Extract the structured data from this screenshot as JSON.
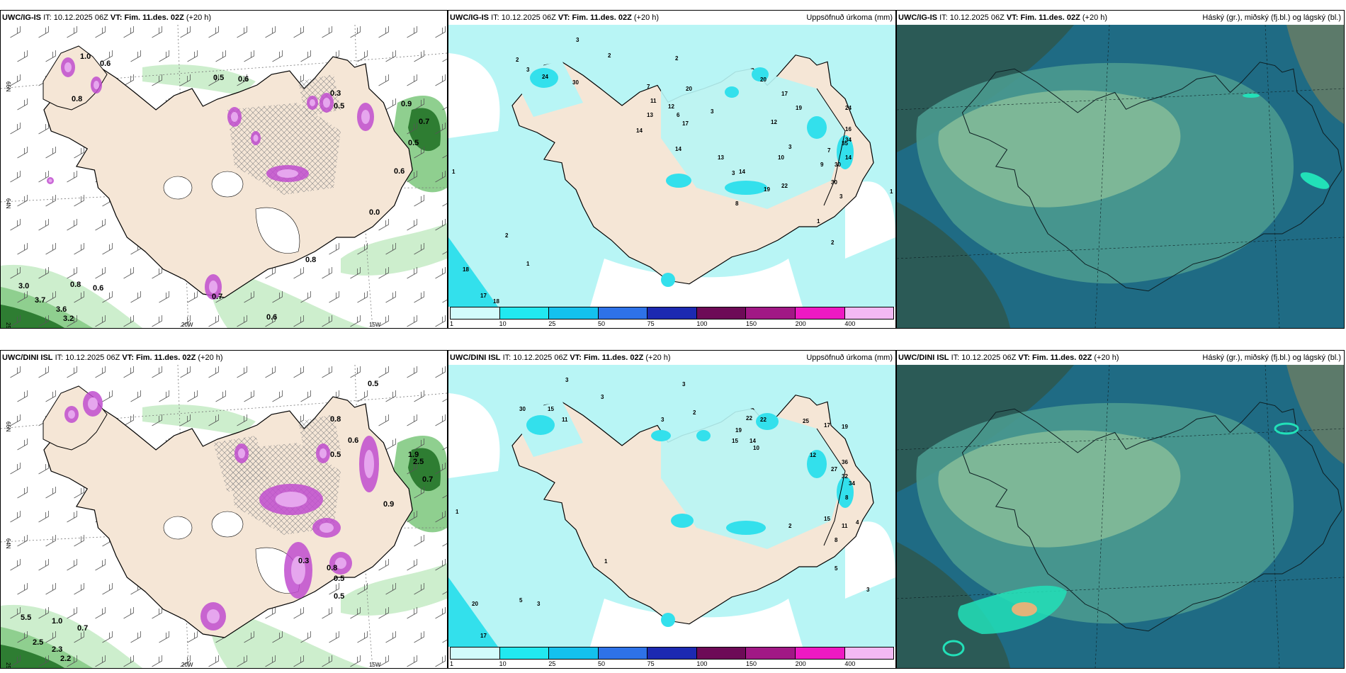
{
  "panels": [
    {
      "model": "UWC/IG-IS",
      "it_label": "IT:",
      "it": "10.12.2025 06Z",
      "vt_label": "VT:",
      "vt": "Fim. 11.des. 02Z",
      "lead": "(+20 h)",
      "right_title": "",
      "lon_labels": [
        "20W",
        "15W"
      ],
      "lat_labels": [
        "66N",
        "64N",
        "25W"
      ],
      "values": [
        "1.0",
        "0.6",
        "0.8",
        "0.5",
        "0.6",
        "0.3",
        "0.5",
        "0.9",
        "0.7",
        "0.5",
        "0.6",
        "0.0",
        "0.8",
        "3.0",
        "0.8",
        "0.6",
        "3.7",
        "3.6",
        "3.2",
        "0.6",
        "0.7"
      ]
    },
    {
      "model": "UWC/IG-IS",
      "it_label": "IT:",
      "it": "10.12.2025 06Z",
      "vt_label": "VT:",
      "vt": "Fim. 11.des. 02Z",
      "lead": "(+20 h)",
      "right_title": "Uppsöfnuð úrkoma (mm)",
      "lon_labels": [
        "66N",
        "64N"
      ],
      "values": [
        "3",
        "2",
        "2",
        "2",
        "3",
        "24",
        "30",
        "7",
        "20",
        "11",
        "12",
        "13",
        "14",
        "17",
        "6",
        "3",
        "14",
        "20",
        "17",
        "24",
        "19",
        "12",
        "16",
        "34",
        "35",
        "30",
        "30",
        "3",
        "1",
        "1",
        "2",
        "18",
        "17",
        "18",
        "1",
        "19",
        "14",
        "22",
        "8",
        "3",
        "13",
        "10",
        "7",
        "9",
        "14",
        "3",
        "1",
        "2"
      ],
      "legend": [
        "1",
        "10",
        "25",
        "50",
        "75",
        "100",
        "150",
        "200",
        "400"
      ]
    },
    {
      "model": "UWC/IG-IS",
      "it_label": "IT:",
      "it": "10.12.2025 06Z",
      "vt_label": "VT:",
      "vt": "Fim. 11.des. 02Z",
      "lead": "(+20 h)",
      "right_title": "Háský (gr.), miðský (fj.bl.) og lágský (bl.)"
    },
    {
      "model": "UWC/DINI ISL",
      "it_label": "IT:",
      "it": "10.12.2025 06Z",
      "vt_label": "VT:",
      "vt": "Fim. 11.des. 02Z",
      "lead": "(+20 h)",
      "right_title": "",
      "lon_labels": [
        "20W",
        "15W"
      ],
      "lat_labels": [
        "66N",
        "64N",
        "25W"
      ],
      "values": [
        "0.5",
        "1.9",
        "0.8",
        "0.6",
        "0.5",
        "2.5",
        "0.7",
        "0.3",
        "0.8",
        "0.5",
        "5.5",
        "1.0",
        "0.7",
        "2.5",
        "2.3",
        "2.2",
        "0.9",
        "0.5"
      ]
    },
    {
      "model": "UWC/DINI ISL",
      "it_label": "IT:",
      "it": "10.12.2025 06Z",
      "vt_label": "VT:",
      "vt": "Fim. 11.des. 02Z",
      "lead": "(+20 h)",
      "right_title": "Uppsöfnuð úrkoma (mm)",
      "lon_labels": [
        "66N",
        "64N"
      ],
      "values": [
        "3",
        "3",
        "3",
        "2",
        "3",
        "30",
        "15",
        "11",
        "22",
        "22",
        "19",
        "15",
        "14",
        "10",
        "25",
        "17",
        "19",
        "12",
        "36",
        "27",
        "32",
        "34",
        "1",
        "20",
        "17",
        "5",
        "3",
        "1",
        "8",
        "4",
        "15",
        "11",
        "8",
        "5",
        "2",
        "3"
      ],
      "legend": [
        "1",
        "10",
        "25",
        "50",
        "75",
        "100",
        "150",
        "200",
        "400"
      ]
    },
    {
      "model": "UWC/DINI ISL",
      "it_label": "IT:",
      "it": "10.12.2025 06Z",
      "vt_label": "VT:",
      "vt": "Fim. 11.des. 02Z",
      "lead": "(+20 h)",
      "right_title": "Háský (gr.), miðský (fj.bl.) og lágský (bl.)"
    }
  ],
  "colors": {
    "land": "#f5e6d6",
    "precip_light": "#b8f5f5",
    "precip_mid": "#33e0ec",
    "cloud_dark": "#1f6b84",
    "cloud_mid": "#4a9a8f",
    "cloud_light": "#8bbf9a",
    "green_light": "#cdeecd",
    "green_dark": "#2e7d32",
    "purple": "#c04ccf"
  },
  "legend_colors": [
    "#d2fbfb",
    "#21e9f0",
    "#14c1ee",
    "#2e72e8",
    "#1c29b1",
    "#6d0b57",
    "#a11885",
    "#ee19c3",
    "#f3b9f3"
  ],
  "icons": [
    "wind-barb-icon",
    "hatch-pattern"
  ]
}
